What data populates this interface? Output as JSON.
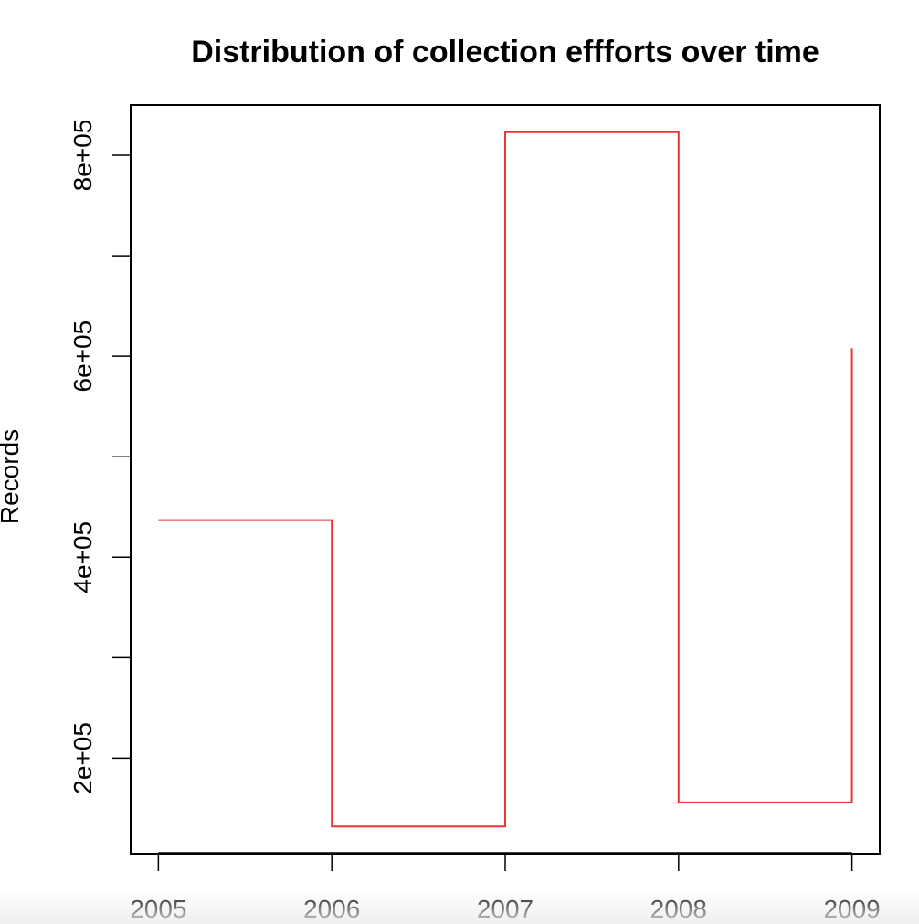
{
  "chart_data": {
    "type": "line",
    "title": "Distribution of collection effforts over time",
    "xlabel": "",
    "ylabel": "Records",
    "x": [
      2005,
      2006,
      2007,
      2008,
      2009
    ],
    "series": [
      {
        "values": [
          437000,
          132000,
          823000,
          156000,
          608000
        ],
        "step": "post",
        "color": "#ee3333"
      }
    ],
    "xlim": [
      2004.84,
      2009.16
    ],
    "ylim": [
      105000,
      850000
    ],
    "x_ticks": [
      2005,
      2006,
      2007,
      2008,
      2009
    ],
    "x_tick_labels": [
      "2005",
      "2006",
      "2007",
      "2008",
      "2009"
    ],
    "y_ticks": [
      200000,
      300000,
      400000,
      500000,
      600000,
      700000,
      800000
    ],
    "y_tick_labels": [
      "2e+05",
      "",
      "4e+05",
      "",
      "6e+05",
      "",
      "8e+05"
    ],
    "grid": false,
    "legend": "none"
  }
}
